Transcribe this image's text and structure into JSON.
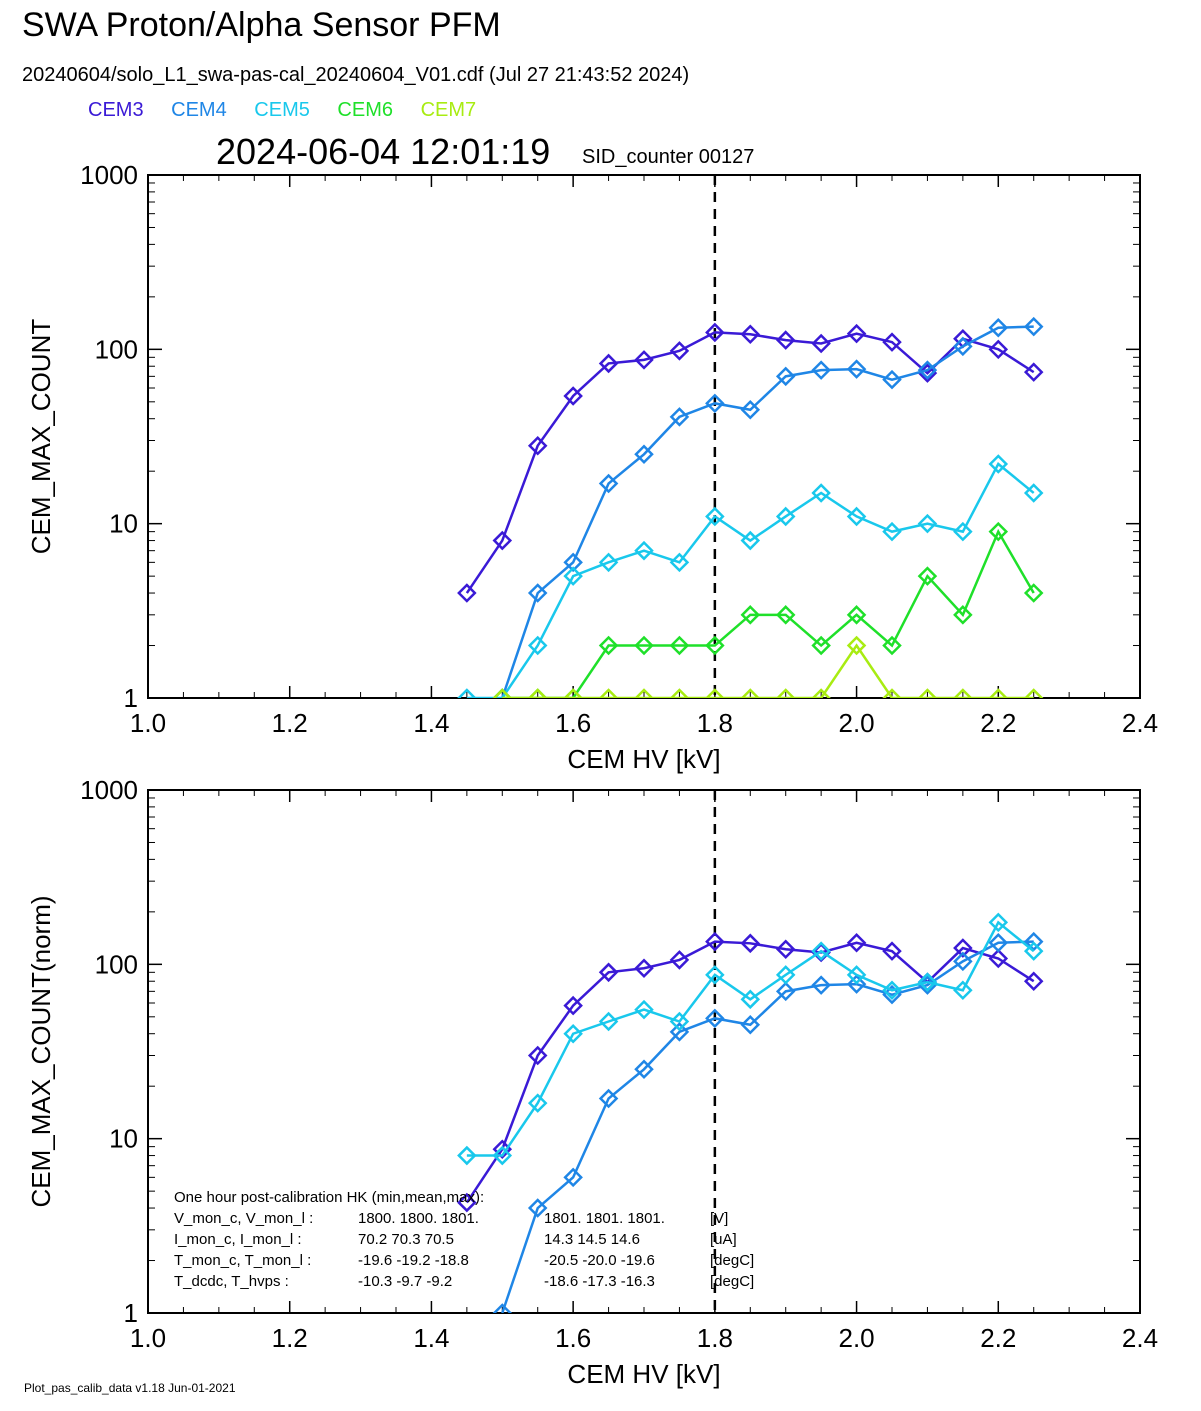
{
  "title": "SWA Proton/Alpha Sensor PFM",
  "file_info": "20240604/solo_L1_swa-pas-cal_20240604_V01.cdf  (Jul 27 21:43:52 2024)",
  "timestamp": "2024-06-04 12:01:19",
  "sid_counter": "SID_counter 00127",
  "footer": "Plot_pas_calib_data v1.18 Jun-01-2021",
  "legend": [
    {
      "name": "CEM3",
      "color": "#3a1ad6"
    },
    {
      "name": "CEM4",
      "color": "#1f86e6"
    },
    {
      "name": "CEM5",
      "color": "#19c8ec"
    },
    {
      "name": "CEM6",
      "color": "#1fe02a"
    },
    {
      "name": "CEM7",
      "color": "#a8ec12"
    }
  ],
  "hk_table": {
    "title": "One hour post-calibration HK (min,mean,max):",
    "rows": [
      {
        "label": "V_mon_c, V_mon_l :",
        "a": "1800.  1800.  1801.",
        "b": "1801.  1801.  1801.",
        "unit": "[V]"
      },
      {
        "label": "I_mon_c,  I_mon_l :",
        "a": "70.2   70.3   70.5",
        "b": "14.3   14.5   14.6",
        "unit": "[uA]"
      },
      {
        "label": "T_mon_c, T_mon_l :",
        "a": "-19.6  -19.2  -18.8",
        "b": "-20.5  -20.0  -19.6",
        "unit": "[degC]"
      },
      {
        "label": "T_dcdc,    T_hvps :",
        "a": "-10.3   -9.7   -9.2",
        "b": "-18.6  -17.3  -16.3",
        "unit": "[degC]"
      }
    ]
  },
  "chart_data": [
    {
      "type": "line",
      "xlabel": "CEM HV [kV]",
      "ylabel": "CEM_MAX_COUNT",
      "xlim": [
        1.0,
        2.4
      ],
      "ylim": [
        1,
        1000
      ],
      "yscale": "log",
      "xticks": [
        "1.0",
        "1.2",
        "1.4",
        "1.6",
        "1.8",
        "2.0",
        "2.2",
        "2.4"
      ],
      "yticks": [
        "1",
        "10",
        "100",
        "1000"
      ],
      "vline": 1.8,
      "series": [
        {
          "name": "CEM3",
          "color": "#3a1ad6",
          "points": [
            [
              1.45,
              4
            ],
            [
              1.5,
              8
            ],
            [
              1.55,
              28
            ],
            [
              1.6,
              54
            ],
            [
              1.65,
              83
            ],
            [
              1.7,
              87
            ],
            [
              1.75,
              98
            ],
            [
              1.8,
              125
            ],
            [
              1.85,
              122
            ],
            [
              1.9,
              113
            ],
            [
              1.95,
              108
            ],
            [
              2.0,
              123
            ],
            [
              2.05,
              110
            ],
            [
              2.1,
              73
            ],
            [
              2.15,
              115
            ],
            [
              2.2,
              100
            ],
            [
              2.25,
              74
            ]
          ]
        },
        {
          "name": "CEM4",
          "color": "#1f86e6",
          "points": [
            [
              1.5,
              1
            ],
            [
              1.55,
              4
            ],
            [
              1.6,
              6
            ],
            [
              1.65,
              17
            ],
            [
              1.7,
              25
            ],
            [
              1.75,
              41
            ],
            [
              1.8,
              49
            ],
            [
              1.85,
              45
            ],
            [
              1.9,
              70
            ],
            [
              1.95,
              76
            ],
            [
              2.0,
              77
            ],
            [
              2.05,
              67
            ],
            [
              2.1,
              76
            ],
            [
              2.15,
              104
            ],
            [
              2.2,
              133
            ],
            [
              2.25,
              135
            ]
          ]
        },
        {
          "name": "CEM5",
          "color": "#19c8ec",
          "points": [
            [
              1.45,
              1
            ],
            [
              1.5,
              1
            ],
            [
              1.55,
              2
            ],
            [
              1.6,
              5
            ],
            [
              1.65,
              6
            ],
            [
              1.7,
              7
            ],
            [
              1.75,
              6
            ],
            [
              1.8,
              11
            ],
            [
              1.85,
              8
            ],
            [
              1.9,
              11
            ],
            [
              1.95,
              15
            ],
            [
              2.0,
              11
            ],
            [
              2.05,
              9
            ],
            [
              2.1,
              10
            ],
            [
              2.15,
              9
            ],
            [
              2.2,
              22
            ],
            [
              2.25,
              15
            ]
          ]
        },
        {
          "name": "CEM6",
          "color": "#1fe02a",
          "points": [
            [
              1.5,
              1
            ],
            [
              1.55,
              1
            ],
            [
              1.6,
              1
            ],
            [
              1.65,
              2
            ],
            [
              1.7,
              2
            ],
            [
              1.75,
              2
            ],
            [
              1.8,
              2
            ],
            [
              1.85,
              3
            ],
            [
              1.9,
              3
            ],
            [
              1.95,
              2
            ],
            [
              2.0,
              3
            ],
            [
              2.05,
              2
            ],
            [
              2.1,
              5
            ],
            [
              2.15,
              3
            ],
            [
              2.2,
              9
            ],
            [
              2.25,
              4
            ]
          ]
        },
        {
          "name": "CEM7",
          "color": "#a8ec12",
          "points": [
            [
              1.5,
              1
            ],
            [
              1.55,
              1
            ],
            [
              1.6,
              1
            ],
            [
              1.65,
              1
            ],
            [
              1.7,
              1
            ],
            [
              1.75,
              1
            ],
            [
              1.8,
              1
            ],
            [
              1.85,
              1
            ],
            [
              1.9,
              1
            ],
            [
              1.95,
              1
            ],
            [
              2.0,
              2
            ],
            [
              2.05,
              1
            ],
            [
              2.1,
              1
            ],
            [
              2.15,
              1
            ],
            [
              2.2,
              1
            ],
            [
              2.25,
              1
            ]
          ]
        }
      ]
    },
    {
      "type": "line",
      "xlabel": "CEM HV [kV]",
      "ylabel": "CEM_MAX_COUNT(norm)",
      "xlim": [
        1.0,
        2.4
      ],
      "ylim": [
        1,
        1000
      ],
      "yscale": "log",
      "xticks": [
        "1.0",
        "1.2",
        "1.4",
        "1.6",
        "1.8",
        "2.0",
        "2.2",
        "2.4"
      ],
      "yticks": [
        "1",
        "10",
        "100",
        "1000"
      ],
      "vline": 1.8,
      "series": [
        {
          "name": "CEM3",
          "color": "#3a1ad6",
          "points": [
            [
              1.45,
              4.3
            ],
            [
              1.5,
              8.7
            ],
            [
              1.55,
              30
            ],
            [
              1.6,
              58
            ],
            [
              1.65,
              90
            ],
            [
              1.7,
              95
            ],
            [
              1.75,
              106
            ],
            [
              1.8,
              135
            ],
            [
              1.85,
              132
            ],
            [
              1.9,
              122
            ],
            [
              1.95,
              117
            ],
            [
              2.0,
              133
            ],
            [
              2.05,
              119
            ],
            [
              2.1,
              79
            ],
            [
              2.15,
              124
            ],
            [
              2.2,
              108
            ],
            [
              2.25,
              80
            ]
          ]
        },
        {
          "name": "CEM4",
          "color": "#1f86e6",
          "points": [
            [
              1.5,
              1
            ],
            [
              1.55,
              4
            ],
            [
              1.6,
              6
            ],
            [
              1.65,
              17
            ],
            [
              1.7,
              25
            ],
            [
              1.75,
              41
            ],
            [
              1.8,
              49
            ],
            [
              1.85,
              45
            ],
            [
              1.9,
              70
            ],
            [
              1.95,
              76
            ],
            [
              2.0,
              77
            ],
            [
              2.05,
              67
            ],
            [
              2.1,
              76
            ],
            [
              2.15,
              104
            ],
            [
              2.2,
              133
            ],
            [
              2.25,
              135
            ]
          ]
        },
        {
          "name": "CEM5",
          "color": "#19c8ec",
          "points": [
            [
              1.45,
              8
            ],
            [
              1.5,
              8
            ],
            [
              1.55,
              16
            ],
            [
              1.6,
              40
            ],
            [
              1.65,
              47
            ],
            [
              1.7,
              55
            ],
            [
              1.75,
              47
            ],
            [
              1.8,
              87
            ],
            [
              1.85,
              63
            ],
            [
              1.9,
              87
            ],
            [
              1.95,
              119
            ],
            [
              2.0,
              87
            ],
            [
              2.05,
              71
            ],
            [
              2.1,
              79
            ],
            [
              2.15,
              71
            ],
            [
              2.2,
              174
            ],
            [
              2.25,
              119
            ]
          ]
        }
      ]
    }
  ]
}
